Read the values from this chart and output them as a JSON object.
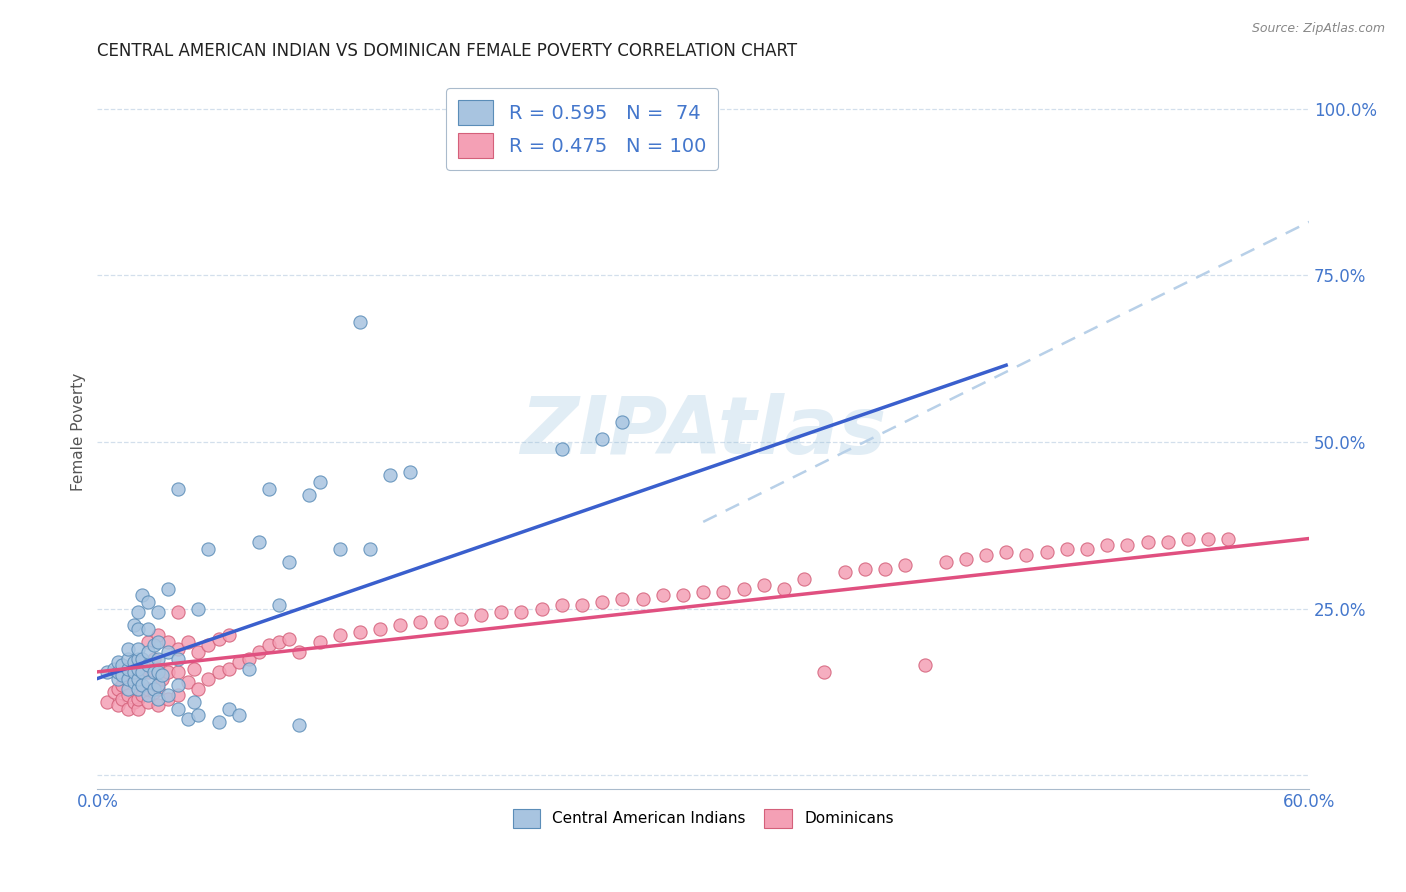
{
  "title": "CENTRAL AMERICAN INDIAN VS DOMINICAN FEMALE POVERTY CORRELATION CHART",
  "source": "Source: ZipAtlas.com",
  "ylabel": "Female Poverty",
  "xlim": [
    0.0,
    0.6
  ],
  "ylim": [
    -0.02,
    1.05
  ],
  "ytick_values": [
    0.0,
    0.25,
    0.5,
    0.75,
    1.0
  ],
  "xtick_values": [
    0.0,
    0.1,
    0.2,
    0.3,
    0.4,
    0.5,
    0.6
  ],
  "blue_R": 0.595,
  "blue_N": 74,
  "pink_R": 0.475,
  "pink_N": 100,
  "blue_fill_color": "#A8C4E0",
  "blue_edge_color": "#5B8DB8",
  "pink_fill_color": "#F4A0B5",
  "pink_edge_color": "#D4607A",
  "blue_line_color": "#3A5FCD",
  "pink_line_color": "#E05080",
  "dashed_line_color": "#B8D0E8",
  "label_color": "#4477CC",
  "watermark": "ZIPAtlas",
  "blue_trend_x": [
    0.0,
    0.45
  ],
  "blue_trend_y": [
    0.145,
    0.615
  ],
  "pink_trend_x": [
    0.0,
    0.6
  ],
  "pink_trend_y": [
    0.155,
    0.355
  ],
  "dashed_trend_x": [
    0.3,
    0.6
  ],
  "dashed_trend_y": [
    0.38,
    0.83
  ],
  "blue_scatter_x": [
    0.005,
    0.008,
    0.01,
    0.01,
    0.01,
    0.012,
    0.012,
    0.015,
    0.015,
    0.015,
    0.015,
    0.015,
    0.018,
    0.018,
    0.018,
    0.018,
    0.02,
    0.02,
    0.02,
    0.02,
    0.02,
    0.02,
    0.02,
    0.022,
    0.022,
    0.022,
    0.022,
    0.025,
    0.025,
    0.025,
    0.025,
    0.025,
    0.025,
    0.028,
    0.028,
    0.028,
    0.03,
    0.03,
    0.03,
    0.03,
    0.03,
    0.03,
    0.032,
    0.035,
    0.035,
    0.035,
    0.04,
    0.04,
    0.04,
    0.04,
    0.045,
    0.048,
    0.05,
    0.05,
    0.055,
    0.06,
    0.065,
    0.07,
    0.075,
    0.08,
    0.085,
    0.09,
    0.095,
    0.1,
    0.105,
    0.11,
    0.12,
    0.13,
    0.135,
    0.145,
    0.155,
    0.23,
    0.25,
    0.26
  ],
  "blue_scatter_y": [
    0.155,
    0.16,
    0.145,
    0.155,
    0.17,
    0.15,
    0.165,
    0.13,
    0.145,
    0.16,
    0.175,
    0.19,
    0.14,
    0.155,
    0.17,
    0.225,
    0.13,
    0.145,
    0.16,
    0.175,
    0.19,
    0.22,
    0.245,
    0.135,
    0.155,
    0.175,
    0.27,
    0.12,
    0.14,
    0.165,
    0.185,
    0.22,
    0.26,
    0.13,
    0.155,
    0.195,
    0.115,
    0.135,
    0.155,
    0.175,
    0.2,
    0.245,
    0.15,
    0.12,
    0.185,
    0.28,
    0.1,
    0.135,
    0.175,
    0.43,
    0.085,
    0.11,
    0.09,
    0.25,
    0.34,
    0.08,
    0.1,
    0.09,
    0.16,
    0.35,
    0.43,
    0.255,
    0.32,
    0.075,
    0.42,
    0.44,
    0.34,
    0.68,
    0.34,
    0.45,
    0.455,
    0.49,
    0.505,
    0.53
  ],
  "pink_scatter_x": [
    0.005,
    0.008,
    0.01,
    0.01,
    0.012,
    0.012,
    0.015,
    0.015,
    0.015,
    0.018,
    0.018,
    0.02,
    0.02,
    0.02,
    0.02,
    0.02,
    0.022,
    0.022,
    0.025,
    0.025,
    0.025,
    0.025,
    0.028,
    0.028,
    0.03,
    0.03,
    0.03,
    0.03,
    0.032,
    0.035,
    0.035,
    0.035,
    0.04,
    0.04,
    0.04,
    0.04,
    0.045,
    0.045,
    0.048,
    0.05,
    0.05,
    0.055,
    0.055,
    0.06,
    0.06,
    0.065,
    0.065,
    0.07,
    0.075,
    0.08,
    0.085,
    0.09,
    0.095,
    0.1,
    0.11,
    0.12,
    0.13,
    0.14,
    0.15,
    0.16,
    0.17,
    0.18,
    0.19,
    0.2,
    0.21,
    0.22,
    0.23,
    0.24,
    0.25,
    0.26,
    0.27,
    0.28,
    0.29,
    0.3,
    0.31,
    0.32,
    0.33,
    0.34,
    0.35,
    0.36,
    0.37,
    0.38,
    0.39,
    0.4,
    0.41,
    0.42,
    0.43,
    0.44,
    0.45,
    0.46,
    0.47,
    0.48,
    0.49,
    0.5,
    0.51,
    0.52,
    0.53,
    0.54,
    0.55,
    0.56
  ],
  "pink_scatter_y": [
    0.11,
    0.125,
    0.105,
    0.13,
    0.115,
    0.135,
    0.1,
    0.12,
    0.15,
    0.11,
    0.145,
    0.1,
    0.115,
    0.13,
    0.15,
    0.17,
    0.12,
    0.16,
    0.11,
    0.13,
    0.155,
    0.2,
    0.125,
    0.175,
    0.105,
    0.13,
    0.16,
    0.21,
    0.145,
    0.115,
    0.155,
    0.2,
    0.12,
    0.155,
    0.19,
    0.245,
    0.14,
    0.2,
    0.16,
    0.13,
    0.185,
    0.145,
    0.195,
    0.155,
    0.205,
    0.16,
    0.21,
    0.17,
    0.175,
    0.185,
    0.195,
    0.2,
    0.205,
    0.185,
    0.2,
    0.21,
    0.215,
    0.22,
    0.225,
    0.23,
    0.23,
    0.235,
    0.24,
    0.245,
    0.245,
    0.25,
    0.255,
    0.255,
    0.26,
    0.265,
    0.265,
    0.27,
    0.27,
    0.275,
    0.275,
    0.28,
    0.285,
    0.28,
    0.295,
    0.155,
    0.305,
    0.31,
    0.31,
    0.315,
    0.165,
    0.32,
    0.325,
    0.33,
    0.335,
    0.33,
    0.335,
    0.34,
    0.34,
    0.345,
    0.345,
    0.35,
    0.35,
    0.355,
    0.355,
    0.355
  ]
}
